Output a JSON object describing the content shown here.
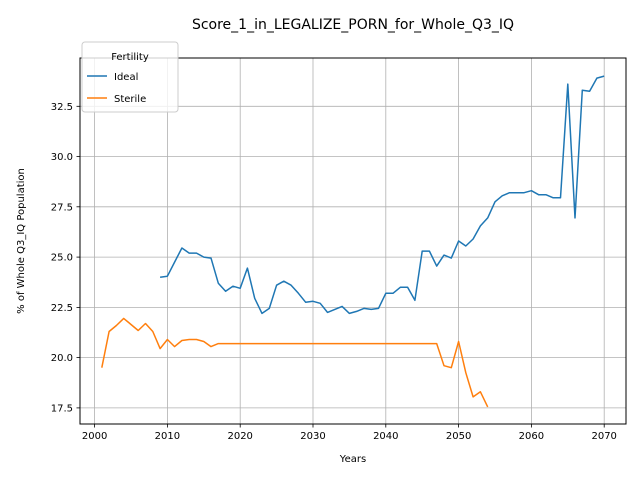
{
  "chart_data": {
    "type": "line",
    "title": "Score_1_in_LEGALIZE_PORN_for_Whole_Q3_IQ",
    "xlabel": "Years",
    "ylabel": "% of Whole Q3_IQ Population",
    "xlim": [
      1998,
      2073
    ],
    "ylim": [
      16.7,
      34.9
    ],
    "xticks": [
      2000,
      2010,
      2020,
      2030,
      2040,
      2050,
      2060,
      2070
    ],
    "yticks": [
      17.5,
      20.0,
      22.5,
      25.0,
      27.5,
      30.0,
      32.5
    ],
    "xtick_labels": [
      "2000",
      "2010",
      "2020",
      "2030",
      "2040",
      "2050",
      "2060",
      "2070"
    ],
    "ytick_labels": [
      "17.5",
      "20.0",
      "22.5",
      "25.0",
      "27.5",
      "30.0",
      "32.5"
    ],
    "grid": true,
    "legend": {
      "title": "Fertility",
      "placement": "top-left"
    },
    "series": [
      {
        "name": "Ideal",
        "color": "#1f77b4",
        "x": [
          2009,
          2010,
          2011,
          2012,
          2013,
          2014,
          2015,
          2016,
          2017,
          2018,
          2019,
          2020,
          2021,
          2022,
          2023,
          2024,
          2025,
          2026,
          2027,
          2028,
          2029,
          2030,
          2031,
          2032,
          2033,
          2034,
          2035,
          2036,
          2037,
          2038,
          2039,
          2040,
          2041,
          2042,
          2043,
          2044,
          2045,
          2046,
          2047,
          2048,
          2049,
          2050,
          2051,
          2052,
          2053,
          2054,
          2055,
          2056,
          2057,
          2058,
          2059,
          2060,
          2061,
          2062,
          2063,
          2064,
          2065,
          2066,
          2067,
          2068,
          2069,
          2070
        ],
        "y": [
          24.0,
          24.05,
          24.75,
          25.45,
          25.2,
          25.2,
          25.0,
          24.95,
          23.7,
          23.3,
          23.55,
          23.45,
          24.45,
          22.95,
          22.2,
          22.45,
          23.6,
          23.8,
          23.6,
          23.2,
          22.75,
          22.8,
          22.7,
          22.25,
          22.4,
          22.55,
          22.2,
          22.3,
          22.45,
          22.4,
          22.45,
          23.2,
          23.2,
          23.5,
          23.5,
          22.85,
          25.3,
          25.3,
          24.55,
          25.1,
          24.95,
          25.8,
          25.55,
          25.9,
          26.55,
          26.95,
          27.75,
          28.05,
          28.2,
          28.2,
          28.2,
          28.3,
          28.1,
          28.1,
          27.95,
          27.95,
          33.6,
          26.95,
          33.3,
          33.25,
          33.9,
          34.0
        ]
      },
      {
        "name": "Sterile",
        "color": "#ff7f0e",
        "x": [
          2001,
          2002,
          2003,
          2004,
          2005,
          2006,
          2007,
          2008,
          2009,
          2010,
          2011,
          2012,
          2013,
          2014,
          2015,
          2016,
          2017,
          2018,
          2019,
          2020,
          2021,
          2022,
          2023,
          2024,
          2025,
          2026,
          2027,
          2028,
          2029,
          2030,
          2031,
          2032,
          2033,
          2034,
          2035,
          2036,
          2037,
          2038,
          2039,
          2040,
          2041,
          2042,
          2043,
          2044,
          2045,
          2046,
          2047,
          2048,
          2049,
          2050,
          2051,
          2052,
          2053,
          2054
        ],
        "y": [
          19.5,
          21.3,
          21.6,
          21.95,
          21.65,
          21.35,
          21.7,
          21.3,
          20.45,
          20.9,
          20.55,
          20.85,
          20.9,
          20.9,
          20.8,
          20.55,
          20.7,
          20.7,
          20.7,
          20.7,
          20.7,
          20.7,
          20.7,
          20.7,
          20.7,
          20.7,
          20.7,
          20.7,
          20.7,
          20.7,
          20.7,
          20.7,
          20.7,
          20.7,
          20.7,
          20.7,
          20.7,
          20.7,
          20.7,
          20.7,
          20.7,
          20.7,
          20.7,
          20.7,
          20.7,
          20.7,
          20.7,
          19.6,
          19.5,
          20.8,
          19.25,
          18.05,
          18.3,
          17.55
        ]
      }
    ]
  }
}
